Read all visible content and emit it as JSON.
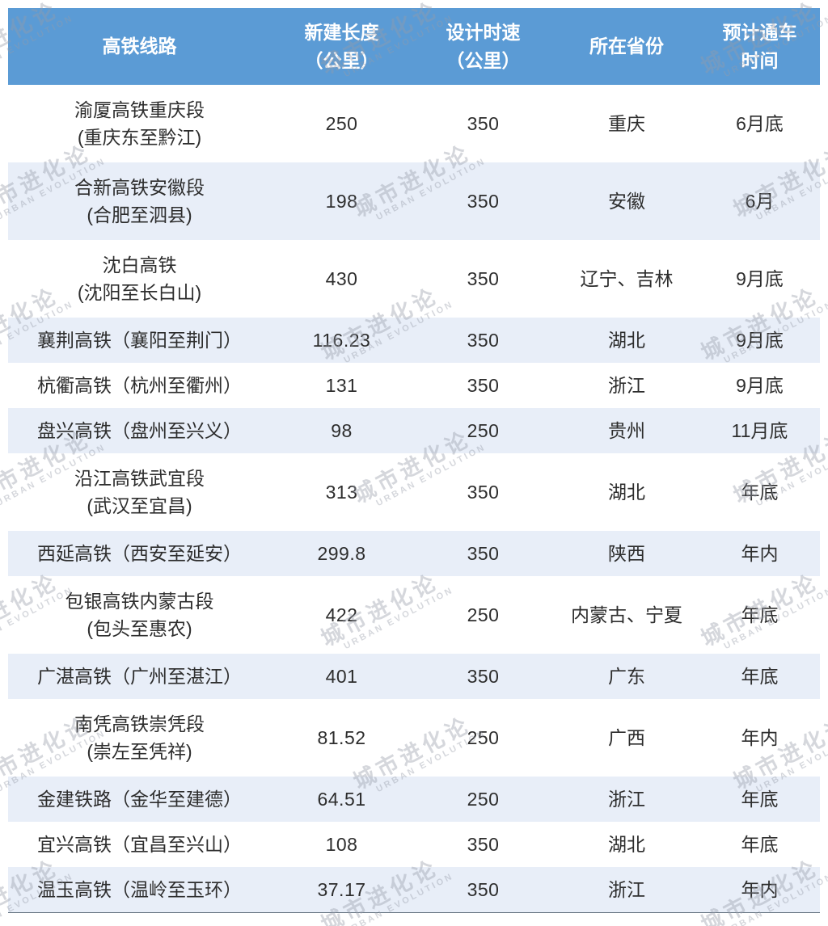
{
  "colors": {
    "header_bg": "#5B9BD5",
    "header_text": "#FFFFFF",
    "row_bg": "#FFFFFF",
    "row_alt_bg": "#E8EEF8",
    "body_text": "#2D2D2D",
    "bottom_line": "#5C6B78"
  },
  "watermark": {
    "line1": "城市进化论",
    "line2": "URBAN EVOLUTION"
  },
  "table": {
    "headers": [
      {
        "line1": "高铁线路",
        "line2": ""
      },
      {
        "line1": "新建长度",
        "line2": "（公里）"
      },
      {
        "line1": "设计时速",
        "line2": "（公里）"
      },
      {
        "line1": "所在省份",
        "line2": ""
      },
      {
        "line1": "预计通车",
        "line2": "时间"
      }
    ],
    "rows": [
      {
        "name1": "渝厦高铁重庆段",
        "name2": "(重庆东至黔江)",
        "length": "250",
        "speed": "350",
        "province": "重庆",
        "open_time": "6月底"
      },
      {
        "name1": "合新高铁安徽段",
        "name2": "(合肥至泗县)",
        "length": "198",
        "speed": "350",
        "province": "安徽",
        "open_time": "6月"
      },
      {
        "name1": "沈白高铁",
        "name2": "(沈阳至长白山)",
        "length": "430",
        "speed": "350",
        "province": "辽宁、吉林",
        "open_time": "9月底"
      },
      {
        "name1": "襄荆高铁（襄阳至荆门）",
        "name2": "",
        "length": "116.23",
        "speed": "350",
        "province": "湖北",
        "open_time": "9月底"
      },
      {
        "name1": "杭衢高铁（杭州至衢州）",
        "name2": "",
        "length": "131",
        "speed": "350",
        "province": "浙江",
        "open_time": "9月底"
      },
      {
        "name1": "盘兴高铁（盘州至兴义）",
        "name2": "",
        "length": "98",
        "speed": "250",
        "province": "贵州",
        "open_time": "11月底"
      },
      {
        "name1": "沿江高铁武宜段",
        "name2": "(武汉至宜昌)",
        "length": "313",
        "speed": "350",
        "province": "湖北",
        "open_time": "年底"
      },
      {
        "name1": "西延高铁（西安至延安）",
        "name2": "",
        "length": "299.8",
        "speed": "350",
        "province": "陕西",
        "open_time": "年内"
      },
      {
        "name1": "包银高铁内蒙古段",
        "name2": "(包头至惠农)",
        "length": "422",
        "speed": "250",
        "province": "内蒙古、宁夏",
        "open_time": "年底"
      },
      {
        "name1": "广湛高铁（广州至湛江）",
        "name2": "",
        "length": "401",
        "speed": "350",
        "province": "广东",
        "open_time": "年底"
      },
      {
        "name1": "南凭高铁崇凭段",
        "name2": "(崇左至凭祥)",
        "length": "81.52",
        "speed": "250",
        "province": "广西",
        "open_time": "年内"
      },
      {
        "name1": "金建铁路（金华至建德）",
        "name2": "",
        "length": "64.51",
        "speed": "250",
        "province": "浙江",
        "open_time": "年底"
      },
      {
        "name1": "宜兴高铁（宜昌至兴山）",
        "name2": "",
        "length": "108",
        "speed": "350",
        "province": "湖北",
        "open_time": "年底"
      },
      {
        "name1": "温玉高铁（温岭至玉环）",
        "name2": "",
        "length": "37.17",
        "speed": "350",
        "province": "浙江",
        "open_time": "年内"
      }
    ]
  },
  "chart_data": {
    "type": "table",
    "columns": [
      "高铁线路",
      "新建长度（公里）",
      "设计时速（公里）",
      "所在省份",
      "预计通车时间"
    ],
    "rows": [
      [
        "渝厦高铁重庆段(重庆东至黔江)",
        250,
        350,
        "重庆",
        "6月底"
      ],
      [
        "合新高铁安徽段(合肥至泗县)",
        198,
        350,
        "安徽",
        "6月"
      ],
      [
        "沈白高铁(沈阳至长白山)",
        430,
        350,
        "辽宁、吉林",
        "9月底"
      ],
      [
        "襄荆高铁（襄阳至荆门）",
        116.23,
        350,
        "湖北",
        "9月底"
      ],
      [
        "杭衢高铁（杭州至衢州）",
        131,
        350,
        "浙江",
        "9月底"
      ],
      [
        "盘兴高铁（盘州至兴义）",
        98,
        250,
        "贵州",
        "11月底"
      ],
      [
        "沿江高铁武宜段(武汉至宜昌)",
        313,
        350,
        "湖北",
        "年底"
      ],
      [
        "西延高铁（西安至延安）",
        299.8,
        350,
        "陕西",
        "年内"
      ],
      [
        "包银高铁内蒙古段(包头至惠农)",
        422,
        250,
        "内蒙古、宁夏",
        "年底"
      ],
      [
        "广湛高铁（广州至湛江）",
        401,
        350,
        "广东",
        "年底"
      ],
      [
        "南凭高铁崇凭段(崇左至凭祥)",
        81.52,
        250,
        "广西",
        "年内"
      ],
      [
        "金建铁路（金华至建德）",
        64.51,
        250,
        "浙江",
        "年底"
      ],
      [
        "宜兴高铁（宜昌至兴山）",
        108,
        350,
        "湖北",
        "年底"
      ],
      [
        "温玉高铁（温岭至玉环）",
        37.17,
        350,
        "浙江",
        "年内"
      ]
    ]
  }
}
